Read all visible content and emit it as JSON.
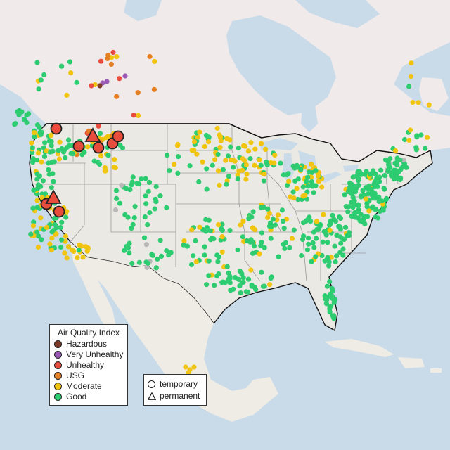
{
  "legend": {
    "title": "Air Quality Index",
    "categories": [
      {
        "label": "Hazardous",
        "color": "#7e3b2a"
      },
      {
        "label": "Very Unhealthy",
        "color": "#9b59b6"
      },
      {
        "label": "Unhealthy",
        "color": "#e74c3c"
      },
      {
        "label": "USG",
        "color": "#e67e22"
      },
      {
        "label": "Moderate",
        "color": "#f1c40f"
      },
      {
        "label": "Good",
        "color": "#2ecc71"
      }
    ],
    "no_data_color": "#b8b8b8"
  },
  "monitor_types": {
    "temporary": {
      "label": "temporary",
      "shape": "circle"
    },
    "permanent": {
      "label": "permanent",
      "shape": "triangle"
    }
  },
  "colors": {
    "water": "#c9dbe9",
    "land": "#f2efe9",
    "us_land": "#ebe9e4",
    "canada_land": "#f0eaea",
    "mexico_land": "#efece6",
    "border": "#111111",
    "state_line": "#9a9a9a"
  }
}
